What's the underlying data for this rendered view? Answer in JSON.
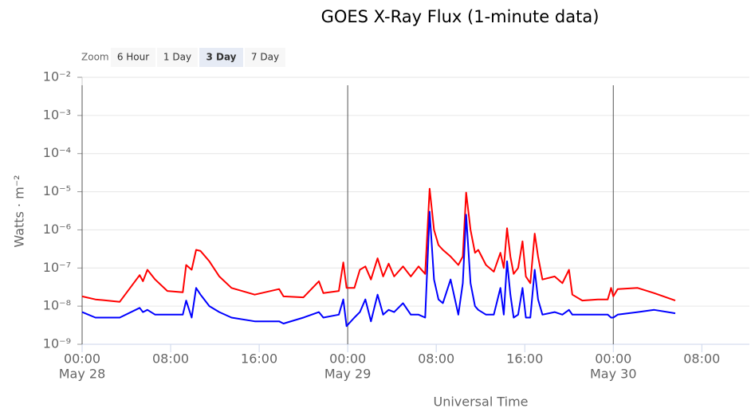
{
  "chart_data": {
    "type": "line",
    "title": "GOES X-Ray Flux (1-minute data)",
    "zoom": {
      "label": "Zoom",
      "options": [
        "6 Hour",
        "1 Day",
        "3 Day",
        "7 Day"
      ],
      "selected": 2
    },
    "x_label": "Universal Time",
    "y_label": "Watts · m⁻²",
    "log_y": true,
    "grid": true,
    "xlim": [
      0,
      60.3
    ],
    "xticks": [
      {
        "value": 0,
        "label": "00:00"
      },
      {
        "value": 8,
        "label": "08:00"
      },
      {
        "value": 16,
        "label": "16:00"
      },
      {
        "value": 24,
        "label": "00:00"
      },
      {
        "value": 32,
        "label": "08:00"
      },
      {
        "value": 40,
        "label": "16:00"
      },
      {
        "value": 48,
        "label": "00:00"
      },
      {
        "value": 56,
        "label": "08:00"
      }
    ],
    "date_labels": [
      {
        "value": 0,
        "label": "May 28"
      },
      {
        "value": 24,
        "label": "May 29"
      },
      {
        "value": 48,
        "label": "May 30"
      }
    ],
    "ylim": [
      1e-09,
      0.01
    ],
    "yticks": [
      {
        "value": 1e-09,
        "label": "10⁻⁹"
      },
      {
        "value": 1e-08,
        "label": "10⁻⁸"
      },
      {
        "value": 1e-07,
        "label": "10⁻⁷"
      },
      {
        "value": 1e-06,
        "label": "10⁻⁶"
      },
      {
        "value": 1e-05,
        "label": "10⁻⁵"
      },
      {
        "value": 0.0001,
        "label": "10⁻⁴"
      },
      {
        "value": 0.001,
        "label": "10⁻³"
      },
      {
        "value": 0.01,
        "label": "10⁻²"
      }
    ],
    "x": [
      0,
      1.2,
      3.4,
      5.2,
      5.5,
      5.9,
      6.6,
      7.7,
      9.1,
      9.4,
      9.9,
      10.3,
      10.7,
      11.5,
      12.4,
      13.5,
      15.6,
      17.8,
      18.2,
      20,
      21.4,
      21.8,
      23.2,
      23.6,
      23.9,
      24.6,
      25.1,
      25.6,
      26.1,
      26.7,
      27.2,
      27.7,
      28.2,
      29,
      29.7,
      30.4,
      31,
      31.4,
      31.8,
      32.2,
      32.6,
      33.3,
      34,
      34.4,
      34.7,
      35.1,
      35.5,
      35.8,
      36.5,
      37.2,
      37.8,
      38.1,
      38.4,
      38.7,
      39,
      39.4,
      39.8,
      40.1,
      40.5,
      40.9,
      41.2,
      41.6,
      42.7,
      43.4,
      44,
      44.3,
      45.2,
      46.6,
      47.5,
      47.8,
      48,
      48.4,
      50.2,
      51.7,
      53.6
    ],
    "series": [
      {
        "color": "#ff0000",
        "values": [
          1.8e-08,
          1.5e-08,
          1.3e-08,
          6.5e-08,
          4.5e-08,
          9e-08,
          5e-08,
          2.5e-08,
          2.3e-08,
          1.2e-07,
          9e-08,
          3e-07,
          2.8e-07,
          1.5e-07,
          6e-08,
          3e-08,
          2e-08,
          2.8e-08,
          1.8e-08,
          1.7e-08,
          4.5e-08,
          2.2e-08,
          2.5e-08,
          1.4e-07,
          3e-08,
          3e-08,
          9e-08,
          1.1e-07,
          5e-08,
          1.8e-07,
          6e-08,
          1.3e-07,
          6e-08,
          1.1e-07,
          6e-08,
          1.1e-07,
          7e-08,
          1.2e-05,
          1e-06,
          4e-07,
          3e-07,
          2e-07,
          1.2e-07,
          2e-07,
          9.5e-06,
          1e-06,
          2.5e-07,
          3e-07,
          1.2e-07,
          8e-08,
          2.5e-07,
          1e-07,
          1.1e-06,
          2e-07,
          7e-08,
          1e-07,
          5e-07,
          6e-08,
          4e-08,
          8e-07,
          2e-07,
          5e-08,
          6e-08,
          4e-08,
          9e-08,
          2e-08,
          1.4e-08,
          1.5e-08,
          1.5e-08,
          3e-08,
          1.8e-08,
          2.8e-08,
          3e-08,
          2.2e-08,
          1.4e-08
        ]
      },
      {
        "color": "#0000ff",
        "values": [
          7e-09,
          5e-09,
          5e-09,
          9e-09,
          7e-09,
          8e-09,
          6e-09,
          6e-09,
          6e-09,
          1.4e-08,
          5e-09,
          3e-08,
          2e-08,
          1e-08,
          7e-09,
          5e-09,
          4e-09,
          4e-09,
          3.5e-09,
          5e-09,
          7e-09,
          5e-09,
          6e-09,
          1.5e-08,
          3e-09,
          5e-09,
          7e-09,
          1.5e-08,
          4e-09,
          2e-08,
          6e-09,
          8e-09,
          7e-09,
          1.2e-08,
          6e-09,
          6e-09,
          5e-09,
          3e-06,
          5e-08,
          1.5e-08,
          1.2e-08,
          5e-08,
          6e-09,
          4e-08,
          2.5e-06,
          4e-08,
          1e-08,
          8e-09,
          6e-09,
          6e-09,
          3e-08,
          6e-09,
          1.5e-07,
          2e-08,
          5e-09,
          6e-09,
          3e-08,
          5e-09,
          5e-09,
          9e-08,
          1.5e-08,
          6e-09,
          7e-09,
          6e-09,
          8e-09,
          6e-09,
          6e-09,
          6e-09,
          6e-09,
          5e-09,
          5e-09,
          6e-09,
          7e-09,
          8e-09,
          6.5e-09
        ]
      }
    ]
  }
}
